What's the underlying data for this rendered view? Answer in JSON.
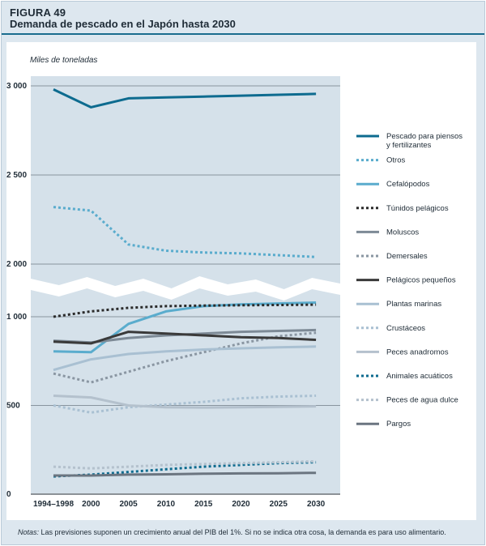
{
  "figure": {
    "number": "FIGURA 49",
    "title": "Demanda de pescado en el Japón hasta 2030",
    "note_label": "Notas:",
    "note_text": " Las previsiones suponen un crecimiento anual del PIB del 1%. Si no se indica otra cosa, la demanda es para uso alimentario."
  },
  "chart_data": {
    "type": "line",
    "title": "Demanda de pescado en el Japón hasta 2030",
    "ylabel": "Miles de toneladas",
    "xlabel": "",
    "axis_break": "between 1 000 and 2 000 (upper segment 2 000–3 000, lower segment 0–1 000)",
    "grid": true,
    "legend_position": "right",
    "x": [
      "1994–1998",
      "2000",
      "2005",
      "2010",
      "2015",
      "2020",
      "2025",
      "2030"
    ],
    "y_ticks": [
      {
        "label": "3 000",
        "value": 3000
      },
      {
        "label": "2 500",
        "value": 2500
      },
      {
        "label": "2 000",
        "value": 2000
      },
      {
        "label": "1 000",
        "value": 1000
      },
      {
        "label": "500",
        "value": 500
      },
      {
        "label": "0",
        "value": 0
      }
    ],
    "series": [
      {
        "name": "Pescado para piensos y fertilizantes",
        "legend": [
          "Pescado para piensos",
          "y fertilizantes"
        ],
        "color": "#0d6b8f",
        "style": "solid",
        "width": 3,
        "values": [
          2980,
          2880,
          2930,
          2935,
          2940,
          2945,
          2950,
          2955
        ]
      },
      {
        "name": "Otros",
        "legend": [
          "Otros"
        ],
        "color": "#5aaccd",
        "style": "dashed",
        "width": 3,
        "values": [
          2320,
          2300,
          2110,
          2075,
          2065,
          2060,
          2050,
          2040
        ]
      },
      {
        "name": "Cefalópodos",
        "legend": [
          "Cefalópodos"
        ],
        "color": "#5aaccd",
        "style": "solid",
        "width": 3,
        "values": [
          805,
          800,
          960,
          1030,
          1060,
          1070,
          1075,
          1080
        ]
      },
      {
        "name": "Túnidos pelágicos",
        "legend": [
          "Túnidos pelágicos"
        ],
        "color": "#2b2b2b",
        "style": "dashed",
        "width": 3,
        "values": [
          1000,
          1030,
          1050,
          1060,
          1063,
          1065,
          1066,
          1068
        ]
      },
      {
        "name": "Moluscos",
        "legend": [
          "Moluscos"
        ],
        "color": "#7d8a96",
        "style": "solid",
        "width": 3,
        "values": [
          865,
          855,
          880,
          895,
          905,
          915,
          920,
          925
        ]
      },
      {
        "name": "Demersales",
        "legend": [
          "Demersales"
        ],
        "color": "#8a96a2",
        "style": "dashed",
        "width": 3,
        "values": [
          680,
          630,
          690,
          750,
          800,
          850,
          890,
          910
        ]
      },
      {
        "name": "Pelágicos pequeños",
        "legend": [
          "Pelágicos pequeños"
        ],
        "color": "#3a3a3a",
        "style": "solid",
        "width": 3,
        "values": [
          860,
          850,
          915,
          905,
          895,
          885,
          880,
          870
        ]
      },
      {
        "name": "Plantas marinas",
        "legend": [
          "Plantas marinas"
        ],
        "color": "#a9c0d2",
        "style": "solid",
        "width": 3,
        "values": [
          700,
          760,
          790,
          805,
          815,
          822,
          828,
          832
        ]
      },
      {
        "name": "Crustáceos",
        "legend": [
          "Crustáceos"
        ],
        "color": "#a9c0d2",
        "style": "dashed",
        "width": 3,
        "values": [
          500,
          460,
          490,
          505,
          520,
          540,
          550,
          555
        ]
      },
      {
        "name": "Peces anadromos",
        "legend": [
          "Peces anadromos"
        ],
        "color": "#b4c1cd",
        "style": "solid",
        "width": 3,
        "values": [
          555,
          545,
          500,
          490,
          488,
          490,
          492,
          495
        ]
      },
      {
        "name": "Animales acuáticos",
        "legend": [
          "Animales acuáticos"
        ],
        "color": "#0d6b8f",
        "style": "dashed",
        "width": 3,
        "values": [
          100,
          110,
          125,
          140,
          155,
          165,
          175,
          180
        ]
      },
      {
        "name": "Peces de agua dulce",
        "legend": [
          "Peces de agua dulce"
        ],
        "color": "#b4c1cd",
        "style": "dashed",
        "width": 3,
        "values": [
          155,
          145,
          155,
          165,
          170,
          175,
          180,
          185
        ]
      },
      {
        "name": "Pargos",
        "legend": [
          "Pargos"
        ],
        "color": "#6b7580",
        "style": "solid",
        "width": 3,
        "values": [
          105,
          105,
          110,
          112,
          115,
          117,
          118,
          120
        ]
      }
    ]
  }
}
